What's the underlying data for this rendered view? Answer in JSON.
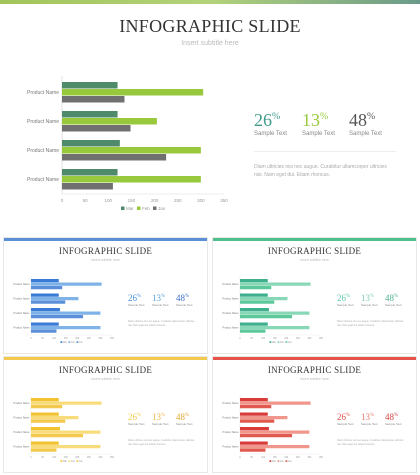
{
  "slide": {
    "title": "INFOGRAPHIC SLIDE",
    "subtitle": "Insert subtitle here",
    "description": "Diam ultricies nisi nec augue. Curabitur ullamcorper ultricies nisi. Nam eget dui. Etiam rhoncus."
  },
  "stats": [
    {
      "value": "26",
      "unit": "%",
      "label": "Sample Text"
    },
    {
      "value": "13",
      "unit": "%",
      "label": "Sample Text"
    },
    {
      "value": "48",
      "unit": "%",
      "label": "Sample Text"
    }
  ],
  "chart_data": {
    "type": "bar",
    "orientation": "horizontal",
    "categories": [
      "Product Name",
      "Product Name",
      "Product Name",
      "Product Name"
    ],
    "series": [
      {
        "name": "Mar",
        "values": [
          120,
          120,
          125,
          120
        ]
      },
      {
        "name": "Feb",
        "values": [
          305,
          205,
          300,
          300
        ]
      },
      {
        "name": "Jan",
        "values": [
          135,
          148,
          225,
          110
        ]
      }
    ],
    "xlim": [
      0,
      350
    ],
    "xticks": [
      0,
      50,
      100,
      150,
      200,
      250,
      300,
      350
    ],
    "legend_position": "bottom"
  },
  "themes": [
    {
      "name": "green",
      "bar": "#6bac52",
      "accent": "#98c93c",
      "dark": "#6c6c6c",
      "top": "#9ac460",
      "stat_colors": [
        "#3f9a8a",
        "#98c93c",
        "#555555"
      ],
      "series_colors": [
        "#4f8a6b",
        "#98c93c",
        "#707070"
      ]
    },
    {
      "name": "blue",
      "top": "#5b8fd6",
      "stat_colors": [
        "#4a90d9",
        "#5aa3dc",
        "#3a6fc7"
      ],
      "series_colors": [
        "#3a7bd5",
        "#7fb3e8",
        "#5c8fd9"
      ]
    },
    {
      "name": "teal",
      "top": "#4fc08d",
      "stat_colors": [
        "#5fc8b0",
        "#7fd0b0",
        "#4fb08d"
      ],
      "series_colors": [
        "#3fb08d",
        "#88d8b8",
        "#5cc89b"
      ]
    },
    {
      "name": "yellow",
      "top": "#f2c94c",
      "stat_colors": [
        "#f2c94c",
        "#f2b94c",
        "#e0a830"
      ],
      "series_colors": [
        "#f2c230",
        "#f8dc7c",
        "#f2c94c"
      ]
    },
    {
      "name": "red",
      "top": "#e5534b",
      "stat_colors": [
        "#e5534b",
        "#e57b6b",
        "#d04040"
      ],
      "series_colors": [
        "#d93a3a",
        "#f0968c",
        "#e05a4f"
      ]
    }
  ]
}
